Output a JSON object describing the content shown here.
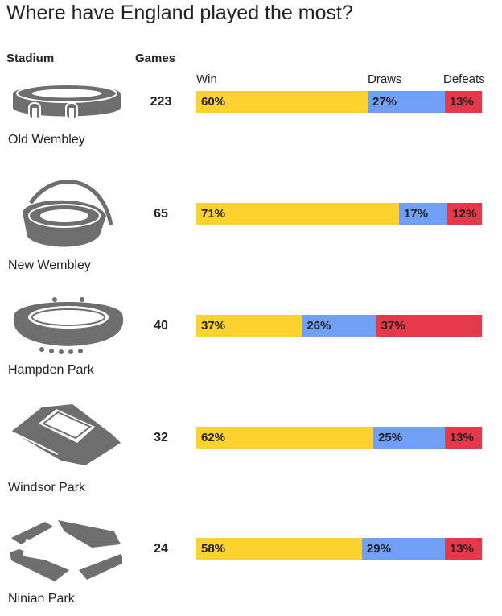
{
  "title": "Where have England played the most?",
  "headers": {
    "stadium": "Stadium",
    "games": "Games"
  },
  "legend": [
    {
      "label": "Win",
      "color": "#fdd22e"
    },
    {
      "label": "Draws",
      "color": "#6fa0f5"
    },
    {
      "label": "Defeats",
      "color": "#e5394b"
    }
  ],
  "colors": {
    "icon": "#6e6e6e"
  },
  "chart_data": {
    "type": "bar",
    "stacked": true,
    "normalized": true,
    "categories": [
      "Old Wembley",
      "New Wembley",
      "Hampden Park",
      "Windsor Park",
      "Ninian Park"
    ],
    "games": [
      223,
      65,
      40,
      32,
      24
    ],
    "series": [
      {
        "name": "Win",
        "values": [
          60,
          71,
          37,
          62,
          58
        ]
      },
      {
        "name": "Draws",
        "values": [
          27,
          17,
          26,
          25,
          29
        ]
      },
      {
        "name": "Defeats",
        "values": [
          13,
          12,
          37,
          13,
          13
        ]
      }
    ],
    "value_suffix": "%"
  },
  "rows": [
    {
      "stadium": "Old Wembley",
      "icon": "old-wembley-icon",
      "games": "223",
      "labels": [
        "60%",
        "27%",
        "13%"
      ]
    },
    {
      "stadium": "New Wembley",
      "icon": "new-wembley-icon",
      "games": "65",
      "labels": [
        "71%",
        "17%",
        "12%"
      ]
    },
    {
      "stadium": "Hampden Park",
      "icon": "hampden-park-icon",
      "games": "40",
      "labels": [
        "37%",
        "26%",
        "37%"
      ]
    },
    {
      "stadium": "Windsor Park",
      "icon": "windsor-park-icon",
      "games": "32",
      "labels": [
        "62%",
        "25%",
        "13%"
      ]
    },
    {
      "stadium": "Ninian Park",
      "icon": "ninian-park-icon",
      "games": "24",
      "labels": [
        "58%",
        "29%",
        "13%"
      ]
    }
  ]
}
